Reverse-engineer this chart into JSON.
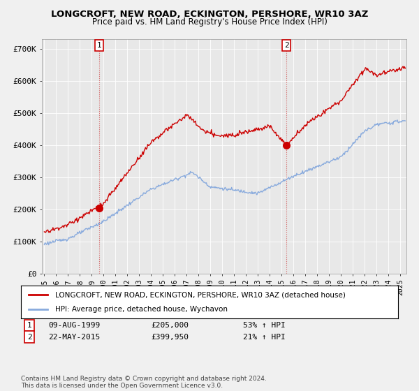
{
  "title": "LONGCROFT, NEW ROAD, ECKINGTON, PERSHORE, WR10 3AZ",
  "subtitle": "Price paid vs. HM Land Registry's House Price Index (HPI)",
  "ylabel_ticks": [
    "£0",
    "£100K",
    "£200K",
    "£300K",
    "£400K",
    "£500K",
    "£600K",
    "£700K"
  ],
  "ytick_vals": [
    0,
    100000,
    200000,
    300000,
    400000,
    500000,
    600000,
    700000
  ],
  "ylim": [
    0,
    730000
  ],
  "xlim_start": 1994.8,
  "xlim_end": 2025.5,
  "sale1_date": 1999.61,
  "sale1_price": 205000,
  "sale1_label": "1",
  "sale2_date": 2015.39,
  "sale2_price": 399950,
  "sale2_label": "2",
  "property_color": "#cc0000",
  "hpi_color": "#88aadd",
  "background_color": "#f0f0f0",
  "plot_bg_color": "#e8e8e8",
  "grid_color": "#ffffff",
  "legend_label_property": "LONGCROFT, NEW ROAD, ECKINGTON, PERSHORE, WR10 3AZ (detached house)",
  "legend_label_hpi": "HPI: Average price, detached house, Wychavon",
  "footnote": "Contains HM Land Registry data © Crown copyright and database right 2024.\nThis data is licensed under the Open Government Licence v3.0."
}
